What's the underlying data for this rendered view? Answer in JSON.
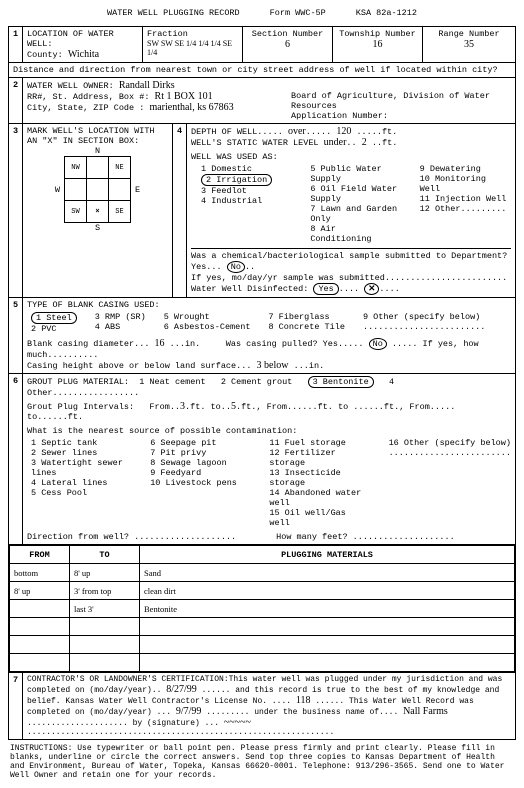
{
  "header": {
    "title": "WATER WELL PLUGGING RECORD",
    "form": "Form WWC-5P",
    "ksa": "KSA 82a-1212"
  },
  "sec1": {
    "label": "LOCATION OF WATER WELL:",
    "county_label": "County:",
    "county": "Wichita",
    "fraction_label": "Fraction",
    "fraction": "SW SW SE 1/4 1/4 1/4 SE 1/4",
    "section_label": "Section Number",
    "section": "6",
    "township_label": "Township Number",
    "township": "16",
    "range_label": "Range Number",
    "range": "35",
    "distance_label": "Distance and direction from nearest town or city street address of well if located within city?"
  },
  "sec2": {
    "label": "WATER WELL OWNER:",
    "owner": "Randall Dirks",
    "addr_label": "RR#, St. Address, Box #:",
    "addr": "Rt 1  BOX 101",
    "city_label": "City, State, ZIP Code :",
    "city": "marienthal, ks 67863",
    "board": "Board of Agriculture, Division of Water Resources",
    "appnum_label": "Application Number:"
  },
  "sec3": {
    "label": "MARK WELL'S LOCATION WITH AN \"X\" IN SECTION BOX:",
    "n": "N",
    "s": "S",
    "e": "E",
    "w": "W"
  },
  "sec4": {
    "depth_label": "DEPTH OF WELL.....",
    "depth_prefix": "over",
    "depth": "120",
    "depth_unit": ".....ft.",
    "static_label": "WELL'S STATIC WATER LEVEL",
    "static_prefix": "under",
    "static": "2",
    "static_unit": "..ft.",
    "used_label": "WELL WAS USED AS:",
    "uses": {
      "c1": [
        "1 Domestic",
        "2 Irrigation",
        "3 Feedlot",
        "4 Industrial"
      ],
      "c2": [
        "5 Public Water Supply",
        "6 Oil Field Water Supply",
        "7 Lawn and Garden Only",
        "8 Air Conditioning"
      ],
      "c3": [
        "9 Dewatering",
        "10 Monitoring Well",
        "11 Injection Well",
        "12 Other........."
      ]
    },
    "selected_use": "2 Irrigation",
    "chem_q": "Was a chemical/bacteriological sample submitted to Department? Yes...",
    "chem_no": "No",
    "chem_if": "If yes, mo/day/yr sample was submitted........................",
    "disinf_label": "Water Well Disinfected:",
    "disinf_yes": "Yes",
    "disinf_x": "✕"
  },
  "sec5": {
    "label": "TYPE OF BLANK CASING USED:",
    "c1": [
      "1 Steel",
      "2 PVC"
    ],
    "c2": [
      "3 RMP (SR)",
      "4 ABS"
    ],
    "c3": [
      "5 Wrought",
      "6 Asbestos-Cement"
    ],
    "c4": [
      "7 Fiberglass",
      "8 Concrete Tile"
    ],
    "c5": [
      "9 Other (specify below)",
      "........................"
    ],
    "selected": "1 Steel",
    "diam_label": "Blank casing diameter...",
    "diam": "16",
    "diam_unit": "...in.",
    "pulled_label": "Was casing pulled?  Yes.....",
    "pulled_no": "No",
    "pulled_if": "..... If yes, how much..........",
    "height_label": "Casing height above or below land surface...",
    "height": "3  below",
    "height_unit": "...in."
  },
  "sec6": {
    "label": "GROUT PLUG MATERIAL:",
    "opts": [
      "1 Neat cement",
      "2 Cement grout",
      "3 Bentonite",
      "4 Other................."
    ],
    "selected": "3 Bentonite",
    "intervals_label": "Grout Plug Intervals:",
    "from1": "3",
    "to1": "5",
    "intervals_rest": ", From......ft. to ......ft., From..... to......ft.",
    "contam_label": "What is the nearest source of possible contamination:",
    "cols": {
      "a": [
        "1 Septic tank",
        "2 Sewer lines",
        "3 Watertight sewer lines",
        "4 Lateral lines",
        "5 Cess Pool"
      ],
      "b": [
        "6 Seepage pit",
        "7 Pit privy",
        "8 Sewage lagoon",
        "9 Feedyard",
        "10 Livestock pens"
      ],
      "c": [
        "11 Fuel storage",
        "12 Fertilizer storage",
        "13 Insecticide storage",
        "14 Abandoned water well",
        "15 Oil well/Gas well"
      ],
      "d": [
        "16 Other (specify below)",
        "........................"
      ]
    },
    "dir_label": "Direction from well? ....................",
    "feet_label": "How many feet? ....................",
    "tbl": {
      "h1": "FROM",
      "h2": "TO",
      "h3": "PLUGGING MATERIALS",
      "rows": [
        {
          "from": "bottom",
          "to": "8' up",
          "mat": "Sand"
        },
        {
          "from": "8' up",
          "to": "3' from top",
          "mat": "clean dirt"
        },
        {
          "from": "",
          "to": "last 3'",
          "mat": "Bentonite"
        },
        {
          "from": "",
          "to": "",
          "mat": ""
        },
        {
          "from": "",
          "to": "",
          "mat": ""
        },
        {
          "from": "",
          "to": "",
          "mat": ""
        }
      ]
    }
  },
  "sec7": {
    "text1": "CONTRACTOR'S OR LANDOWNER'S CERTIFICATION:This water well was plugged under my jurisdiction and was completed on (mo/day/year)..",
    "date1": "8/27/99",
    "text2": "...... and this record is true to the best of my knowledge and belief.  Kansas Water Well Contractor's License No. ....",
    "lic": "118",
    "text3": "......  This Water Well Record was completed on (mo/day/year) ...",
    "date2": "9/7/99",
    "text4": "......... under the business name of....",
    "biz": "Nall Farms",
    "text5": ".....................  by (signature) ...",
    "sig": "~~~~~",
    "text6": "................................................................"
  },
  "instructions": "INSTRUCTIONS:  Use typewriter or ball point pen.  Please press firmly and print clearly.  Please fill in blanks, underline or circle the correct answers.  Send top three copies to Kansas Department of Health and Environment, Bureau of Water, Topeka, Kansas  66620-0001.  Telephone:  913/296-3565.  Send one to Water Well Owner and retain one for your records."
}
